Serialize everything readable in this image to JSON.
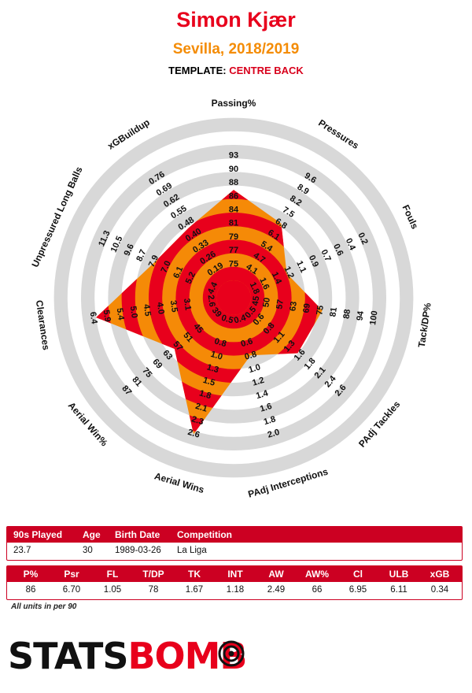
{
  "header": {
    "player": "Simon Kjær",
    "club_season": "Sevilla, 2018/2019",
    "template_label": "TEMPLATE:",
    "template_value": "CENTRE BACK"
  },
  "chart_data": {
    "type": "radar",
    "colors": {
      "ring_red": "#e8001c",
      "ring_orange": "#f58a07",
      "ring_grey": "#d8d8d8",
      "accent": "#cc0022"
    },
    "axes": [
      {
        "label": "Passing%",
        "ticks": [
          "75",
          "77",
          "79",
          "81",
          "84",
          "86",
          "88",
          "90",
          "93"
        ],
        "value": 86,
        "fraction": 0.55
      },
      {
        "label": "Pressures",
        "ticks": [
          "4.1",
          "4.7",
          "5.4",
          "6.1",
          "6.8",
          "7.5",
          "8.2",
          "8.9",
          "9.6"
        ],
        "value": 6.7,
        "fraction": 0.43
      },
      {
        "label": "Fouls",
        "ticks": [
          "1.6",
          "1.4",
          "1.2",
          "1.1",
          "0.9",
          "0.7",
          "0.6",
          "0.4",
          "0.2"
        ],
        "value": 1.05,
        "fraction": 0.25
      },
      {
        "label": "Tack/DP%",
        "ticks": [
          "50",
          "57",
          "63",
          "69",
          "75",
          "81",
          "88",
          "94",
          "100"
        ],
        "value": 78,
        "fraction": 0.44
      },
      {
        "label": "PAdj Tackles",
        "ticks": [
          "0.6",
          "0.8",
          "1.1",
          "1.3",
          "1.6",
          "1.8",
          "2.1",
          "2.4",
          "2.6"
        ],
        "value": 1.67,
        "fraction": 0.41
      },
      {
        "label": "PAdj Interceptions",
        "ticks": [
          "0.6",
          "0.8",
          "1.0",
          "1.2",
          "1.4",
          "1.6",
          "1.8",
          "2.0"
        ],
        "value": 1.18,
        "fraction": 0.26
      },
      {
        "label": "Aerial Wins",
        "ticks": [
          "0.8",
          "1.0",
          "1.3",
          "1.5",
          "1.8",
          "2.1",
          "2.3",
          "2.6"
        ],
        "value": 2.49,
        "fraction": 0.76
      },
      {
        "label": "Aerial Win%",
        "ticks": [
          "45",
          "51",
          "57",
          "63",
          "69",
          "75",
          "81",
          "87"
        ],
        "value": 66,
        "fraction": 0.37
      },
      {
        "label": "Clearances",
        "ticks": [
          "3.1",
          "3.5",
          "4.0",
          "4.5",
          "5.0",
          "5.4",
          "5.9",
          "6.4"
        ],
        "value": 6.95,
        "fraction": 0.74
      },
      {
        "label": "Unpressured Long Balls",
        "ticks": [
          "5.2",
          "6.1",
          "7.0",
          "7.9",
          "8.7",
          "9.6",
          "10.5",
          "11.3"
        ],
        "value": 6.11,
        "fraction": 0.42
      },
      {
        "label": "xGBuildup",
        "ticks": [
          "0.19",
          "0.26",
          "0.33",
          "0.40",
          "0.48",
          "0.55",
          "0.62",
          "0.69",
          "0.76"
        ],
        "value": 0.34,
        "fraction": 0.4
      }
    ],
    "inner_ticks": [
      {
        "axis": 2,
        "ticks": [
          "1.8"
        ]
      },
      {
        "axis": 3,
        "ticks": [
          "45"
        ]
      },
      {
        "axis": 4,
        "ticks": [
          "0.5"
        ]
      },
      {
        "axis": 5,
        "ticks": [
          "0.4"
        ]
      },
      {
        "axis": 6,
        "ticks": [
          "0.5"
        ]
      },
      {
        "axis": 7,
        "ticks": [
          "39"
        ]
      },
      {
        "axis": 8,
        "ticks": [
          "2.6"
        ]
      },
      {
        "axis": 9,
        "ticks": [
          "4.4"
        ]
      }
    ]
  },
  "info_table": {
    "headers": [
      "90s Played",
      "Age",
      "Birth Date",
      "Competition"
    ],
    "values": [
      "23.7",
      "30",
      "1989-03-26",
      "La Liga"
    ]
  },
  "stats_table": {
    "headers": [
      "P%",
      "Psr",
      "FL",
      "T/DP",
      "TK",
      "INT",
      "AW",
      "AW%",
      "Cl",
      "ULB",
      "xGB"
    ],
    "values": [
      "86",
      "6.70",
      "1.05",
      "78",
      "1.67",
      "1.18",
      "2.49",
      "66",
      "6.95",
      "6.11",
      "0.34"
    ]
  },
  "footnote": "All units in per 90",
  "logo": {
    "part1": "STATS",
    "part2": "BOMB"
  }
}
